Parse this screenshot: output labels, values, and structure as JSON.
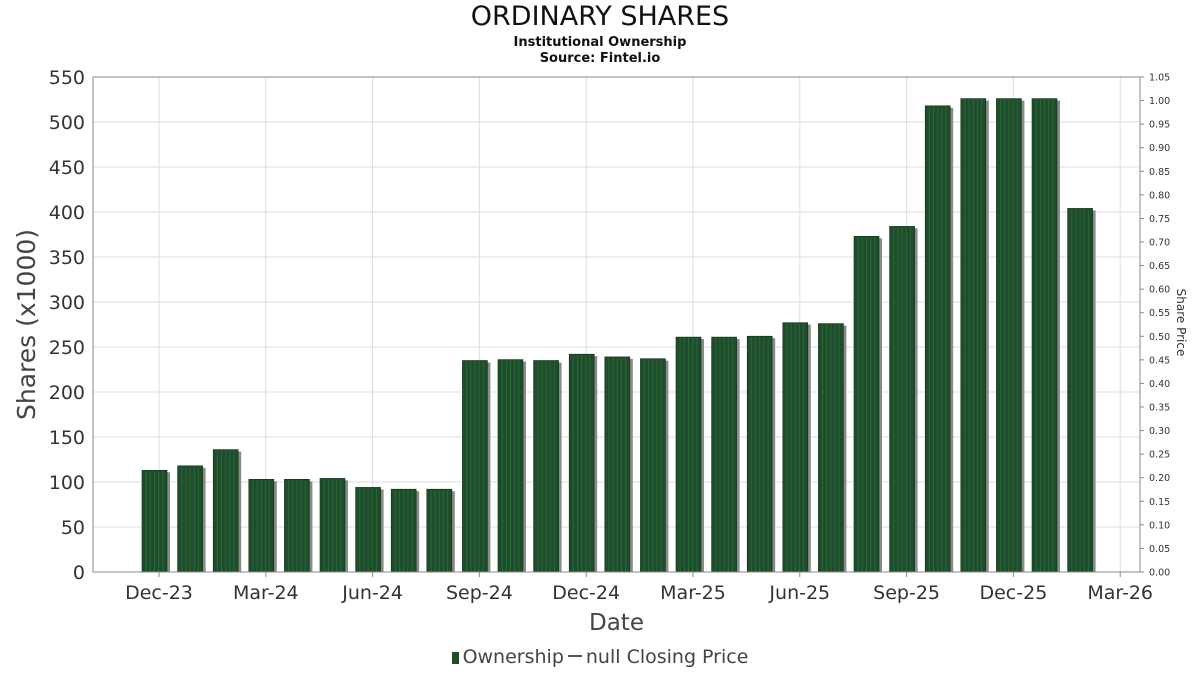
{
  "header": {
    "title": "ORDINARY SHARES",
    "subtitle": "Institutional Ownership",
    "source": "Source: Fintel.io"
  },
  "legend": {
    "ownership_label": "Ownership",
    "price_label": "null Closing Price"
  },
  "colors": {
    "bar": "#1e4d2b",
    "bar_shadow": "#8a8a8a",
    "grid": "#dddddd",
    "axis": "#888888"
  },
  "chart_data": {
    "type": "bar",
    "title": "ORDINARY SHARES",
    "subtitle": "Institutional Ownership",
    "xlabel": "Date",
    "ylabel": "Shares (x1000)",
    "y2label": "Share Price",
    "ylim": [
      0,
      550
    ],
    "y2lim": [
      0,
      1.05
    ],
    "yticks": [
      0,
      50,
      100,
      150,
      200,
      250,
      300,
      350,
      400,
      450,
      500,
      550
    ],
    "y2ticks": [
      "0.00",
      "0.05",
      "0.10",
      "0.15",
      "0.20",
      "0.25",
      "0.30",
      "0.35",
      "0.40",
      "0.45",
      "0.50",
      "0.55",
      "0.60",
      "0.65",
      "0.70",
      "0.75",
      "0.80",
      "0.85",
      "0.90",
      "0.95",
      "1.00",
      "1.05"
    ],
    "xticks": [
      "Dec-23",
      "Mar-24",
      "Jun-24",
      "Sep-24",
      "Dec-24",
      "Mar-25",
      "Jun-25",
      "Sep-25",
      "Dec-25",
      "Mar-26"
    ],
    "grid": true,
    "legend_position": "bottom",
    "series": [
      {
        "name": "Ownership",
        "values": [
          113,
          118,
          136,
          103,
          103,
          104,
          94,
          92,
          92,
          235,
          236,
          235,
          242,
          239,
          237,
          261,
          261,
          262,
          277,
          276,
          373,
          384,
          518,
          526,
          526,
          526,
          404
        ]
      }
    ]
  }
}
